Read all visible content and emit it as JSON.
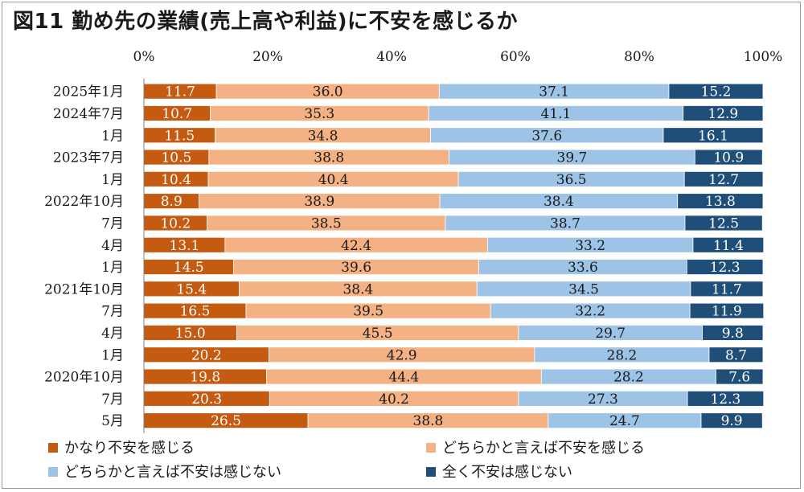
{
  "chart_data": {
    "type": "bar",
    "orientation": "horizontal",
    "stacked": true,
    "title": "図11 勤め先の業績(売上高や利益)に不安を感じるか",
    "xlim": [
      0,
      100
    ],
    "xticks": [
      "0%",
      "20%",
      "40%",
      "60%",
      "80%",
      "100%"
    ],
    "categories": [
      "2025年1月",
      "2024年7月",
      "1月",
      "2023年7月",
      "1月",
      "2022年10月",
      "7月",
      "4月",
      "1月",
      "2021年10月",
      "7月",
      "4月",
      "1月",
      "2020年10月",
      "7月",
      "5月"
    ],
    "series": [
      {
        "name": "かなり不安を感じる",
        "color": "#c55a11",
        "label_color": "#ffffff",
        "values": [
          "11.7",
          "10.7",
          "11.5",
          "10.5",
          "10.4",
          "8.9",
          "10.2",
          "13.1",
          "14.5",
          "15.4",
          "16.5",
          "15.0",
          "20.2",
          "19.8",
          "20.3",
          "26.5"
        ]
      },
      {
        "name": "どちらかと言えば不安を感じる",
        "color": "#f4b183",
        "label_color": "#1a1a1a",
        "values": [
          "36.0",
          "35.3",
          "34.8",
          "38.8",
          "40.4",
          "38.9",
          "38.5",
          "42.4",
          "39.6",
          "38.4",
          "39.5",
          "45.5",
          "42.9",
          "44.4",
          "40.2",
          "38.8"
        ]
      },
      {
        "name": "どちらかと言えば不安は感じない",
        "color": "#9dc3e6",
        "label_color": "#1a1a1a",
        "values": [
          "37.1",
          "41.1",
          "37.6",
          "39.7",
          "36.5",
          "38.4",
          "38.7",
          "33.2",
          "33.6",
          "34.5",
          "32.2",
          "29.7",
          "28.2",
          "28.2",
          "27.3",
          "24.7"
        ]
      },
      {
        "name": "全く不安は感じない",
        "color": "#1f4e79",
        "label_color": "#ffffff",
        "values": [
          "15.2",
          "12.9",
          "16.1",
          "10.9",
          "12.7",
          "13.8",
          "12.5",
          "11.4",
          "12.3",
          "11.7",
          "11.9",
          "9.8",
          "8.7",
          "7.6",
          "12.3",
          "9.9"
        ]
      }
    ],
    "legend_position": "bottom",
    "grid": false
  }
}
